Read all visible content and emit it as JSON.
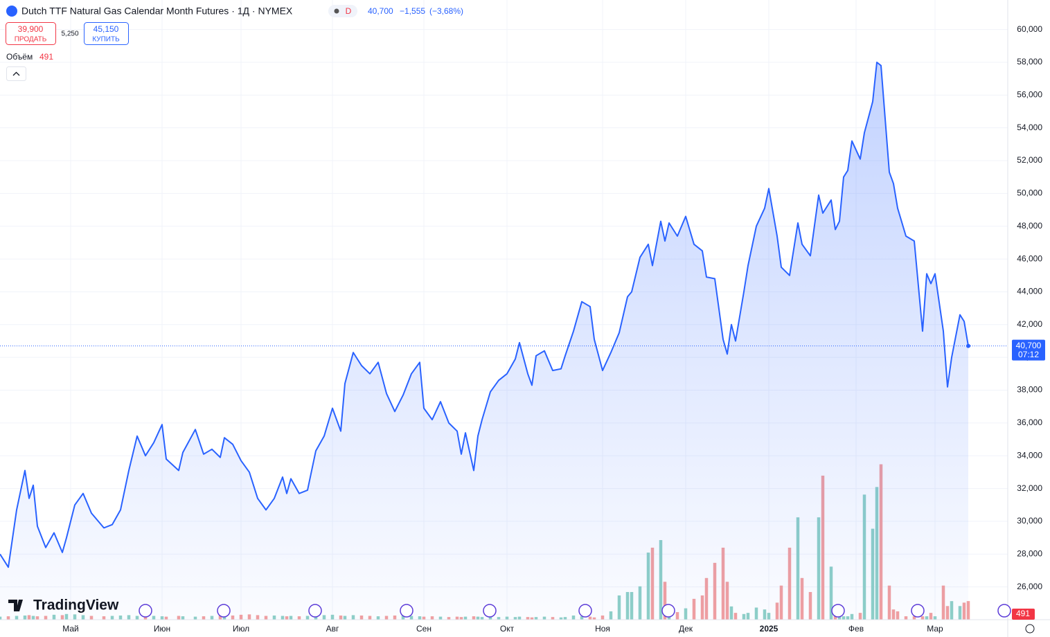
{
  "header": {
    "title": "Dutch TTF Natural Gas Calendar Month Futures · 1Д · NYMEX",
    "badge": "D",
    "change": "−1,555",
    "change_pct": "(−3,68%)",
    "sell_price": "39,900",
    "sell_label": "ПРОДАТЬ",
    "spread": "5,250",
    "buy_price": "45,150",
    "buy_label": "КУПИТЬ",
    "volume_label": "Объём",
    "countdown": "07:12",
    "logo": "TradingView"
  },
  "chart_data": {
    "type": "area",
    "x": [
      0,
      2,
      4,
      6,
      7,
      8,
      9,
      11,
      13,
      15,
      16,
      18,
      20,
      22,
      25,
      27,
      29,
      31,
      33,
      35,
      37,
      39,
      40,
      43,
      44,
      47,
      49,
      51,
      53,
      54,
      56,
      58,
      60,
      62,
      64,
      66,
      68,
      69,
      70,
      72,
      74,
      76,
      78,
      80,
      82,
      83,
      85,
      87,
      89,
      91,
      93,
      95,
      97,
      99,
      101,
      102,
      104,
      106,
      108,
      110,
      111,
      112,
      114,
      115,
      116,
      118,
      120,
      122,
      124,
      125,
      127,
      128,
      129,
      131,
      133,
      135,
      136,
      138,
      140,
      142,
      143,
      145,
      147,
      149,
      151,
      152,
      154,
      156,
      157,
      159,
      160,
      161,
      163,
      165,
      167,
      169,
      170,
      172,
      174,
      175,
      176,
      177,
      179,
      180,
      182,
      184,
      185,
      187,
      188,
      190,
      192,
      193,
      195,
      197,
      198,
      200,
      201,
      202,
      203,
      204,
      205,
      207,
      208,
      210,
      211,
      212,
      214,
      215,
      216,
      218,
      220,
      222,
      223,
      224,
      225,
      227,
      228,
      229,
      231,
      232,
      233
    ],
    "series": [
      {
        "name": "Dutch TTF Natural Gas Calendar Month Futures",
        "color": "#2962ff",
        "values": [
          28000,
          27200,
          30700,
          33100,
          31400,
          32200,
          29700,
          28400,
          29300,
          28100,
          29000,
          31000,
          31700,
          30500,
          29600,
          29800,
          30700,
          33100,
          35200,
          34000,
          34800,
          35900,
          33800,
          33100,
          34200,
          35600,
          34100,
          34400,
          33900,
          35100,
          34700,
          33700,
          33000,
          31400,
          30700,
          31400,
          32700,
          31700,
          32600,
          31700,
          31900,
          34300,
          35200,
          36900,
          35500,
          38400,
          40300,
          39500,
          39000,
          39700,
          37800,
          36700,
          37700,
          39000,
          39700,
          36900,
          36200,
          37300,
          36000,
          35500,
          34100,
          35400,
          33100,
          35200,
          36200,
          37900,
          38600,
          39000,
          39900,
          40900,
          39000,
          38300,
          40100,
          40400,
          39200,
          39300,
          40100,
          41600,
          43400,
          43100,
          41100,
          39200,
          40300,
          41500,
          43700,
          44000,
          46100,
          46900,
          45600,
          48300,
          47100,
          48200,
          47400,
          48600,
          46900,
          46500,
          44900,
          44800,
          41100,
          40200,
          42000,
          41000,
          44000,
          45600,
          48000,
          49100,
          50300,
          47400,
          45500,
          45000,
          48200,
          46900,
          46200,
          49900,
          48800,
          49600,
          47800,
          48300,
          51000,
          51400,
          53200,
          52100,
          53700,
          55600,
          58000,
          57800,
          51300,
          50600,
          49100,
          47400,
          47100,
          41600,
          45100,
          44500,
          45100,
          41600,
          38200,
          40000,
          42600,
          42200,
          40700
        ]
      }
    ],
    "volume": {
      "name": "Объём",
      "up_color": "#8fd0c7",
      "down_color": "#f2a0a0",
      "ylim": [
        0,
        8000
      ],
      "values": [
        80,
        90,
        100,
        110,
        120,
        100,
        90,
        100,
        130,
        120,
        150,
        140,
        120,
        100,
        90,
        100,
        110,
        120,
        100,
        90,
        100,
        90,
        80,
        100,
        90,
        80,
        90,
        100,
        110,
        100,
        110,
        130,
        140,
        120,
        100,
        110,
        100,
        90,
        100,
        90,
        100,
        110,
        120,
        130,
        110,
        100,
        120,
        110,
        100,
        90,
        100,
        110,
        120,
        100,
        90,
        80,
        90,
        80,
        70,
        80,
        70,
        80,
        90,
        80,
        70,
        80,
        70,
        80,
        70,
        80,
        70,
        60,
        70,
        80,
        70,
        60,
        70,
        110,
        90,
        80,
        60,
        110,
        220,
        640,
        730,
        730,
        880,
        1770,
        1900,
        2100,
        1000,
        300,
        200,
        300,
        550,
        640,
        1100,
        1500,
        1900,
        1000,
        350,
        180,
        150,
        180,
        320,
        270,
        180,
        450,
        900,
        1900,
        2700,
        1100,
        730,
        2700,
        3800,
        1400,
        180,
        150,
        90,
        90,
        150,
        180,
        3300,
        2400,
        3500,
        4100,
        900,
        270,
        220,
        90,
        90,
        90,
        90,
        180,
        90,
        900,
        360,
        490,
        360,
        450,
        491
      ]
    },
    "last_price": {
      "value": 40700,
      "label": "40,700"
    },
    "xlim": [
      0,
      242.5
    ],
    "ylim": [
      24000,
      61800
    ],
    "xticks": [
      {
        "value": 17,
        "label": "Май"
      },
      {
        "value": 39,
        "label": "Июн"
      },
      {
        "value": 58,
        "label": "Июл"
      },
      {
        "value": 80,
        "label": "Авг"
      },
      {
        "value": 102,
        "label": "Сен"
      },
      {
        "value": 122,
        "label": "Окт"
      },
      {
        "value": 145,
        "label": "Ноя"
      },
      {
        "value": 165,
        "label": "Дек"
      },
      {
        "value": 185,
        "label": "2025"
      },
      {
        "value": 206,
        "label": "Фев"
      },
      {
        "value": 225,
        "label": "Мар"
      }
    ],
    "yticks": [
      {
        "value": 26000,
        "label": "26,000"
      },
      {
        "value": 28000,
        "label": "28,000"
      },
      {
        "value": 30000,
        "label": "30,000"
      },
      {
        "value": 32000,
        "label": "32,000"
      },
      {
        "value": 34000,
        "label": "34,000"
      },
      {
        "value": 36000,
        "label": "36,000"
      },
      {
        "value": 38000,
        "label": "38,000"
      },
      {
        "value": 40000,
        "label": "40,000"
      },
      {
        "value": 42000,
        "label": "42,000"
      },
      {
        "value": 44000,
        "label": "44,000"
      },
      {
        "value": 46000,
        "label": "46,000"
      },
      {
        "value": 48000,
        "label": "48,000"
      },
      {
        "value": 50000,
        "label": "50,000"
      },
      {
        "value": 52000,
        "label": "52,000"
      },
      {
        "value": 54000,
        "label": "54,000"
      },
      {
        "value": 56000,
        "label": "56,000"
      },
      {
        "value": 58000,
        "label": "58,000"
      },
      {
        "value": 60000,
        "label": "60,000"
      }
    ],
    "grid": true
  }
}
